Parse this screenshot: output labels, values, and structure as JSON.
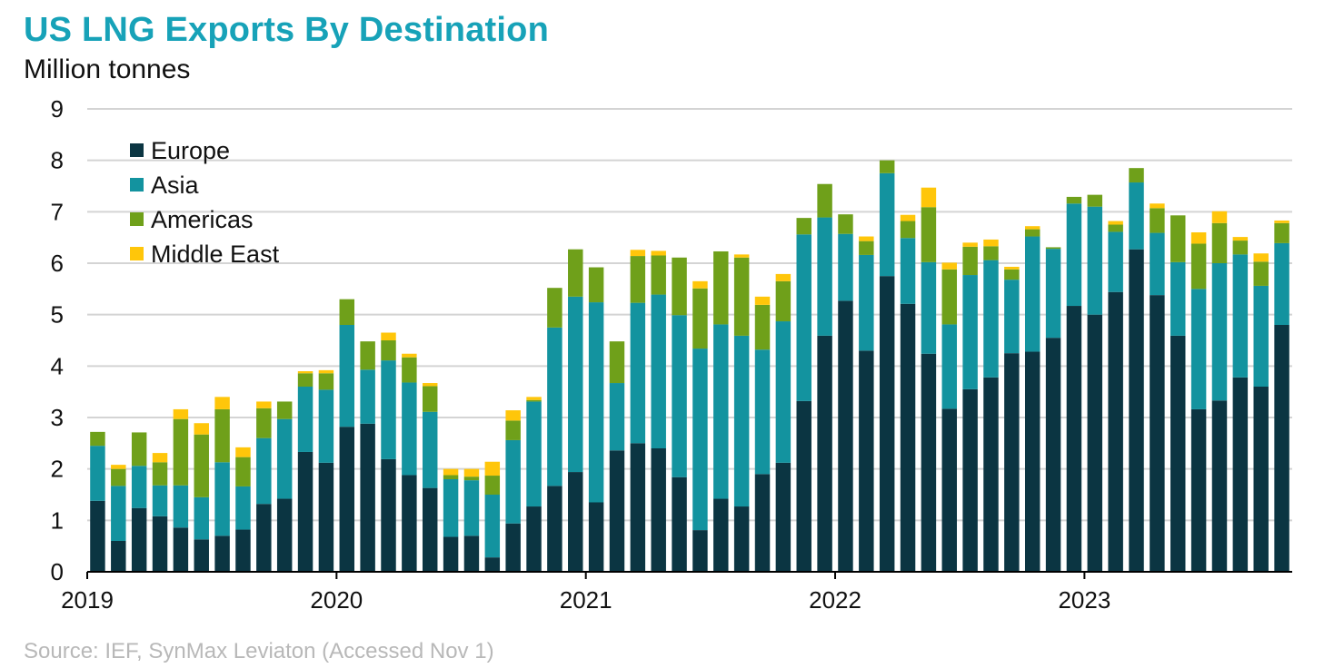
{
  "title": "US LNG Exports By Destination",
  "subtitle": "Million tonnes",
  "source": "Source: IEF, SynMax Leviaton  (Accessed Nov 1)",
  "chart_data": {
    "type": "bar",
    "stacked": true,
    "title": "US LNG Exports By Destination",
    "ylabel": "Million tonnes",
    "ylim": [
      0,
      9
    ],
    "yticks": [
      "0",
      "1",
      "2",
      "3",
      "4",
      "5",
      "6",
      "7",
      "8",
      "9"
    ],
    "grid": true,
    "legend_position": "top-left",
    "x_tick_labels": [
      {
        "label": "2019",
        "index": 0
      },
      {
        "label": "2020",
        "index": 12
      },
      {
        "label": "2021",
        "index": 24
      },
      {
        "label": "2022",
        "index": 36
      },
      {
        "label": "2023",
        "index": 48
      }
    ],
    "categories": [
      "2019-01",
      "2019-02",
      "2019-03",
      "2019-04",
      "2019-05",
      "2019-06",
      "2019-07",
      "2019-08",
      "2019-09",
      "2019-10",
      "2019-11",
      "2019-12",
      "2020-01",
      "2020-02",
      "2020-03",
      "2020-04",
      "2020-05",
      "2020-06",
      "2020-07",
      "2020-08",
      "2020-09",
      "2020-10",
      "2020-11",
      "2020-12",
      "2021-01",
      "2021-02",
      "2021-03",
      "2021-04",
      "2021-05",
      "2021-06",
      "2021-07",
      "2021-08",
      "2021-09",
      "2021-10",
      "2021-11",
      "2021-12",
      "2022-01",
      "2022-02",
      "2022-03",
      "2022-04",
      "2022-05",
      "2022-06",
      "2022-07",
      "2022-08",
      "2022-09",
      "2022-10",
      "2022-11",
      "2022-12",
      "2023-01",
      "2023-02",
      "2023-03",
      "2023-04",
      "2023-05",
      "2023-06",
      "2023-07",
      "2023-08",
      "2023-09",
      "2023-10"
    ],
    "series": [
      {
        "name": "Europe",
        "color": "#0b3542",
        "values": [
          1.38,
          0.6,
          1.24,
          1.08,
          0.86,
          0.63,
          0.7,
          0.82,
          1.32,
          1.42,
          2.33,
          2.12,
          2.82,
          2.88,
          2.19,
          1.88,
          1.63,
          0.68,
          0.7,
          0.28,
          0.94,
          1.27,
          1.67,
          1.94,
          1.35,
          2.36,
          2.5,
          2.4,
          1.84,
          0.81,
          1.42,
          1.27,
          1.9,
          2.12,
          3.32,
          4.59,
          5.27,
          4.3,
          5.75,
          5.21,
          4.24,
          3.17,
          3.55,
          3.78,
          4.25,
          4.28,
          4.55,
          5.17,
          5.0,
          5.44,
          6.27,
          5.38,
          4.59,
          3.16,
          3.33,
          3.78,
          3.6,
          4.8
        ]
      },
      {
        "name": "Asia",
        "color": "#13939f",
        "values": [
          1.07,
          1.07,
          0.82,
          0.6,
          0.82,
          0.82,
          1.43,
          0.84,
          1.28,
          1.55,
          1.27,
          1.42,
          1.98,
          1.05,
          1.92,
          1.8,
          1.48,
          1.12,
          1.08,
          1.22,
          1.62,
          2.04,
          3.08,
          3.41,
          3.89,
          1.31,
          2.73,
          2.99,
          3.15,
          3.53,
          3.39,
          3.32,
          2.42,
          2.75,
          3.24,
          2.3,
          1.3,
          1.86,
          2.0,
          1.28,
          1.78,
          1.64,
          2.22,
          2.28,
          1.43,
          2.24,
          1.73,
          1.99,
          2.1,
          1.17,
          1.3,
          1.21,
          1.43,
          2.34,
          2.67,
          2.39,
          1.96,
          1.59
        ]
      },
      {
        "name": "Americas",
        "color": "#6fa01a",
        "values": [
          0.27,
          0.33,
          0.65,
          0.45,
          1.29,
          1.22,
          1.03,
          0.57,
          0.58,
          0.34,
          0.26,
          0.32,
          0.5,
          0.55,
          0.39,
          0.49,
          0.5,
          0.08,
          0.07,
          0.37,
          0.38,
          0.03,
          0.77,
          0.92,
          0.68,
          0.81,
          0.91,
          0.76,
          1.12,
          1.17,
          1.42,
          1.52,
          0.87,
          0.78,
          0.32,
          0.65,
          0.38,
          0.27,
          0.25,
          0.33,
          1.07,
          1.07,
          0.55,
          0.27,
          0.2,
          0.14,
          0.03,
          0.13,
          0.23,
          0.14,
          0.28,
          0.48,
          0.91,
          0.88,
          0.78,
          0.27,
          0.47,
          0.39
        ]
      },
      {
        "name": "Middle East",
        "color": "#ffc60a",
        "values": [
          0.0,
          0.08,
          0.0,
          0.18,
          0.19,
          0.22,
          0.24,
          0.19,
          0.13,
          0.0,
          0.04,
          0.06,
          0.0,
          0.0,
          0.15,
          0.07,
          0.06,
          0.12,
          0.15,
          0.27,
          0.2,
          0.06,
          0.0,
          0.0,
          0.0,
          0.0,
          0.12,
          0.09,
          0.0,
          0.14,
          0.0,
          0.06,
          0.16,
          0.14,
          0.0,
          0.0,
          0.0,
          0.09,
          0.0,
          0.12,
          0.38,
          0.13,
          0.08,
          0.13,
          0.05,
          0.06,
          0.0,
          0.0,
          0.0,
          0.07,
          0.0,
          0.09,
          0.0,
          0.22,
          0.23,
          0.07,
          0.16,
          0.05
        ]
      }
    ]
  }
}
